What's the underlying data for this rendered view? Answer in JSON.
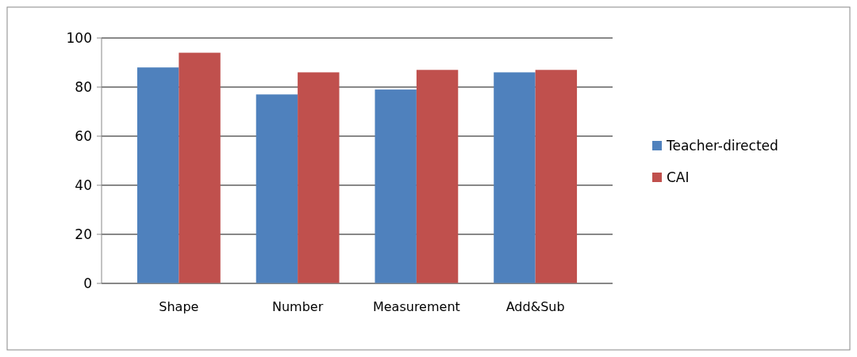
{
  "chart_data": {
    "type": "bar",
    "categories": [
      "Shape",
      "Number",
      "Measurement",
      "Add&Sub"
    ],
    "series": [
      {
        "name": "Teacher-directed",
        "color": "#4f81bd",
        "values": [
          88,
          77,
          79,
          86
        ]
      },
      {
        "name": "CAI",
        "color": "#c0504d",
        "values": [
          94,
          86,
          87,
          87
        ]
      }
    ],
    "ylim": [
      0,
      100
    ],
    "yticks": [
      0,
      20,
      40,
      60,
      80,
      100
    ],
    "grid": "y",
    "legend": "right"
  }
}
